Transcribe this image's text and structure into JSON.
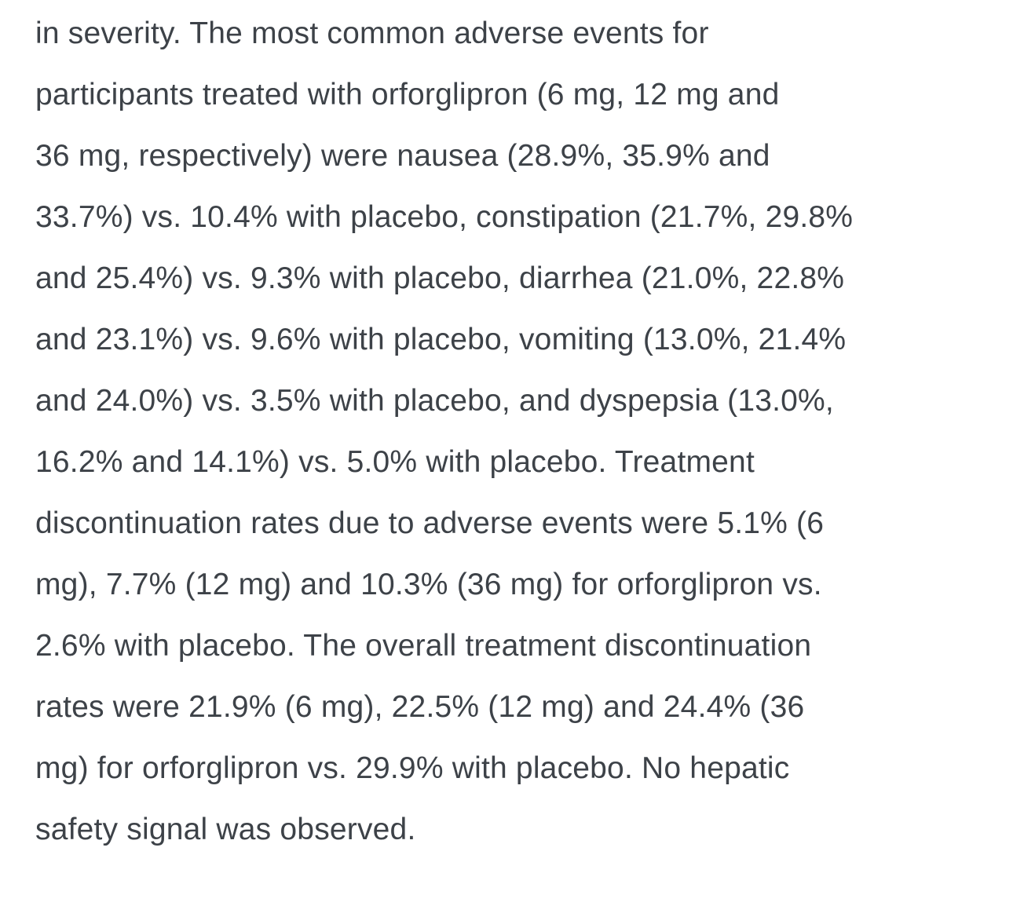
{
  "document": {
    "text_color": "#3d4248",
    "background": "#ffffff",
    "lines": [
      "in severity. The most common adverse events for",
      "participants treated with orforglipron (6 mg, 12 mg and",
      "36 mg, respectively) were nausea (28.9%, 35.9% and",
      "33.7%) vs. 10.4% with placebo, constipation (21.7%, 29.8%",
      "and 25.4%) vs. 9.3% with placebo, diarrhea (21.0%, 22.8%",
      "and 23.1%) vs. 9.6% with placebo, vomiting (13.0%, 21.4%",
      "and 24.0%) vs. 3.5% with placebo, and dyspepsia (13.0%,",
      "16.2% and 14.1%) vs. 5.0% with placebo. Treatment",
      "discontinuation rates due to adverse events were 5.1% (6",
      "mg), 7.7% (12 mg) and 10.3% (36 mg) for orforglipron vs.",
      "2.6% with placebo. The overall treatment discontinuation",
      "rates were 21.9% (6 mg), 22.5% (12 mg) and 24.4% (36",
      "mg) for orforglipron vs. 29.9% with placebo. No hepatic",
      "safety signal was observed."
    ],
    "full_text": "in severity. The most common adverse events for participants treated with orforglipron (6 mg, 12 mg and 36 mg, respectively) were nausea (28.9%, 35.9% and 33.7%) vs. 10.4% with placebo, constipation (21.7%, 29.8% and 25.4%) vs. 9.3% with placebo, diarrhea (21.0%, 22.8% and 23.1%) vs. 9.6% with placebo, vomiting (13.0%, 21.4% and 24.0%) vs. 3.5% with placebo, and dyspepsia (13.0%, 16.2% and 14.1%) vs. 5.0% with placebo. Treatment discontinuation rates due to adverse events were 5.1% (6 mg), 7.7% (12 mg) and 10.3% (36 mg) for orforglipron vs. 2.6% with placebo. The overall treatment discontinuation rates were 21.9% (6 mg), 22.5% (12 mg) and 24.4% (36 mg) for orforglipron vs. 29.9% with placebo. No hepatic safety signal was observed."
  }
}
